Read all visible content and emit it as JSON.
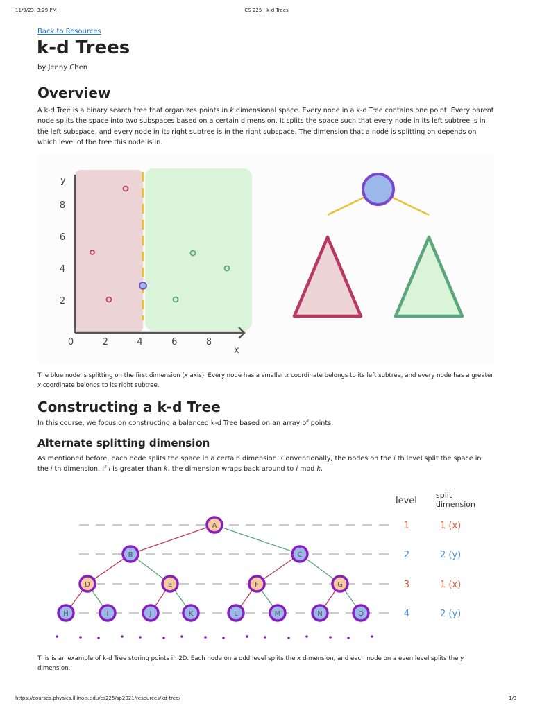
{
  "header": {
    "timestamp": "11/9/23, 3:29 PM",
    "page_title": "CS 225 | k-d Trees"
  },
  "back_link": "Back to Resources",
  "title": "k-d Trees",
  "byline": "by Jenny Chen",
  "overview": {
    "heading": "Overview",
    "paragraph": [
      "A k-d Tree is a binary search tree that organizes points in ",
      "k",
      " dimensional space. Every node in a k-d Tree contains one point. Every parent node splits the space into two subspaces based on a certain dimension. It splits the space such that every node in its left subtree is in the left subspace, and every node in its right subtree is in the right subspace. The dimension that a node is splitting on depends on which level of the tree this node is in."
    ]
  },
  "figure1": {
    "y_label": "y",
    "x_label": "x",
    "x_ticks": [
      0,
      2,
      4,
      6,
      8
    ],
    "y_ticks": [
      2,
      4,
      6,
      8
    ],
    "caption": [
      "The blue node is splitting on the first dimension (",
      "x",
      " axis). Every node has a smaller ",
      "x",
      " coordinate belongs to its left subtree, and every node has a greater ",
      "x",
      " coordinate belongs to its right subtree."
    ]
  },
  "constructing": {
    "heading": "Constructing a k-d Tree",
    "paragraph": [
      "In this course, we focus on constructing a balanced k-d Tree based on an array of points."
    ],
    "subheading": "Alternate splitting dimension",
    "paragraph2": [
      "As mentioned before, each node splits the space in a certain dimension. Conventionally, the nodes on the ",
      "i",
      " th level split the space in the ",
      "i",
      " th dimension. If ",
      "i",
      " is greater than ",
      "k",
      ", the dimension wraps back around to ",
      "i",
      " mod ",
      "k",
      "."
    ]
  },
  "figure2": {
    "level_header": "level",
    "split_header": "split dimension",
    "levels": [
      {
        "level": 1,
        "split": "1 (x)"
      },
      {
        "level": 2,
        "split": "2 (y)"
      },
      {
        "level": 3,
        "split": "1 (x)"
      },
      {
        "level": 4,
        "split": "2 (y)"
      }
    ],
    "nodes": [
      "A",
      "B",
      "C",
      "D",
      "E",
      "F",
      "G",
      "H",
      "I",
      "J",
      "K",
      "L",
      "M",
      "N",
      "O"
    ],
    "caption": [
      "This is an example of k-d Tree storing points in 2D. Each node on a odd level splits the ",
      "x",
      " dimension, and each node on a even level splits the ",
      "y",
      " dimension."
    ]
  },
  "footer": {
    "url": "https://courses.physics.illinois.edu/cs225/sp2021/resources/kd-tree/",
    "page": "1/3"
  }
}
